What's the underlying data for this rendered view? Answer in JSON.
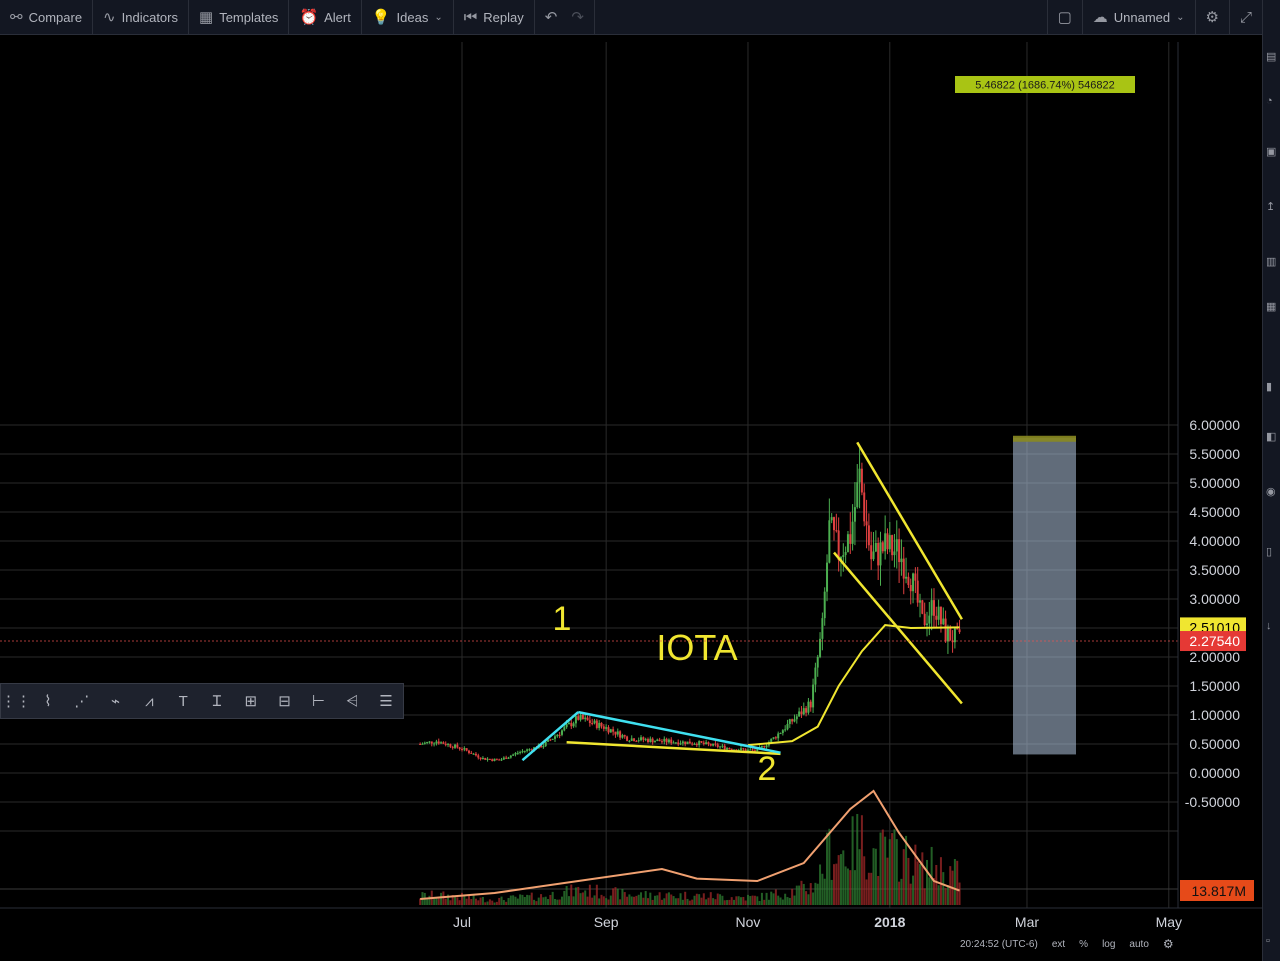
{
  "toolbar": {
    "compare": "Compare",
    "indicators": "Indicators",
    "templates": "Templates",
    "alert": "Alert",
    "ideas": "Ideas",
    "replay": "Replay",
    "layout_name": "Unnamed"
  },
  "colors": {
    "up": "#26a69a",
    "down": "#ef5350",
    "yellow": "#f0e630",
    "cyan": "#3fe0f0",
    "green_candle": "#4caf50",
    "red_candle": "#e04040",
    "volume_ma": "#f0a070",
    "range_box": "#b0c4de"
  },
  "status": {
    "time": "20:24:52 (UTC-6)",
    "ext": "ext",
    "percent": "%",
    "log": "log",
    "auto": "auto"
  },
  "chart_data": {
    "type": "candlestick",
    "symbol_annotation": "IOTA",
    "point_labels": [
      "1",
      "2"
    ],
    "x_ticks": [
      "Jul",
      "Sep",
      "Nov",
      "2018",
      "Mar",
      "May"
    ],
    "y_ticks": [
      "6.00000",
      "5.50000",
      "5.00000",
      "4.50000",
      "4.00000",
      "3.50000",
      "3.00000",
      "2.51010",
      "2.27540",
      "2.00000",
      "1.50000",
      "1.00000",
      "0.50000",
      "0.00000",
      "-0.50000",
      "13.817M"
    ],
    "ylim": [
      -1.15,
      6.3
    ],
    "ma_label": "2.51010",
    "last_price_label": "2.27540",
    "volume_label": "13.817M",
    "measure_label": "5.46822 (1686.74%) 546822",
    "range_box": {
      "from": 0.32,
      "to": 5.78
    },
    "price_path": [
      [
        "2017-06-13",
        0.5
      ],
      [
        "2017-06-20",
        0.55
      ],
      [
        "2017-07-01",
        0.42
      ],
      [
        "2017-07-10",
        0.25
      ],
      [
        "2017-07-17",
        0.22
      ],
      [
        "2017-07-25",
        0.35
      ],
      [
        "2017-08-05",
        0.48
      ],
      [
        "2017-08-20",
        0.95
      ],
      [
        "2017-09-01",
        0.78
      ],
      [
        "2017-09-10",
        0.6
      ],
      [
        "2017-09-25",
        0.55
      ],
      [
        "2017-10-10",
        0.52
      ],
      [
        "2017-10-25",
        0.42
      ],
      [
        "2017-11-05",
        0.38
      ],
      [
        "2017-11-12",
        0.6
      ],
      [
        "2017-11-20",
        0.9
      ],
      [
        "2017-11-28",
        1.2
      ],
      [
        "2017-12-03",
        2.5
      ],
      [
        "2017-12-06",
        4.2
      ],
      [
        "2017-12-10",
        3.8
      ],
      [
        "2017-12-15",
        4.1
      ],
      [
        "2017-12-19",
        5.1
      ],
      [
        "2017-12-24",
        3.7
      ],
      [
        "2017-12-30",
        3.9
      ],
      [
        "2018-01-05",
        3.8
      ],
      [
        "2018-01-10",
        3.4
      ],
      [
        "2018-01-15",
        2.6
      ],
      [
        "2018-01-20",
        2.9
      ],
      [
        "2018-01-25",
        2.4
      ],
      [
        "2018-01-31",
        2.28
      ]
    ],
    "ma_path": [
      [
        "2017-11-01",
        0.48
      ],
      [
        "2017-11-20",
        0.55
      ],
      [
        "2017-12-01",
        0.8
      ],
      [
        "2017-12-10",
        1.5
      ],
      [
        "2017-12-20",
        2.1
      ],
      [
        "2017-12-30",
        2.55
      ],
      [
        "2018-01-10",
        2.5
      ],
      [
        "2018-01-31",
        2.51
      ]
    ],
    "volume_ma_path": [
      [
        "2017-06-13",
        0.05
      ],
      [
        "2017-07-15",
        0.1
      ],
      [
        "2017-08-20",
        0.2
      ],
      [
        "2017-09-25",
        0.3
      ],
      [
        "2017-10-10",
        0.22
      ],
      [
        "2017-11-05",
        0.2
      ],
      [
        "2017-11-25",
        0.35
      ],
      [
        "2017-12-15",
        0.8
      ],
      [
        "2017-12-25",
        0.95
      ],
      [
        "2018-01-05",
        0.6
      ],
      [
        "2018-01-20",
        0.2
      ],
      [
        "2018-01-31",
        0.12
      ]
    ],
    "trendlines": [
      {
        "color": "yellow",
        "from": [
          "2017-12-18",
          5.7
        ],
        "to": [
          "2018-02-01",
          2.65
        ]
      },
      {
        "color": "yellow",
        "from": [
          "2017-12-08",
          3.8
        ],
        "to": [
          "2018-02-01",
          1.2
        ]
      },
      {
        "color": "yellow",
        "from": [
          "2017-08-15",
          0.53
        ],
        "to": [
          "2017-11-15",
          0.33
        ]
      },
      {
        "color": "cyan",
        "from": [
          "2017-07-27",
          0.22
        ],
        "to": [
          "2017-08-20",
          1.05
        ]
      },
      {
        "color": "cyan",
        "from": [
          "2017-08-20",
          1.05
        ],
        "to": [
          "2017-11-15",
          0.35
        ]
      }
    ]
  }
}
